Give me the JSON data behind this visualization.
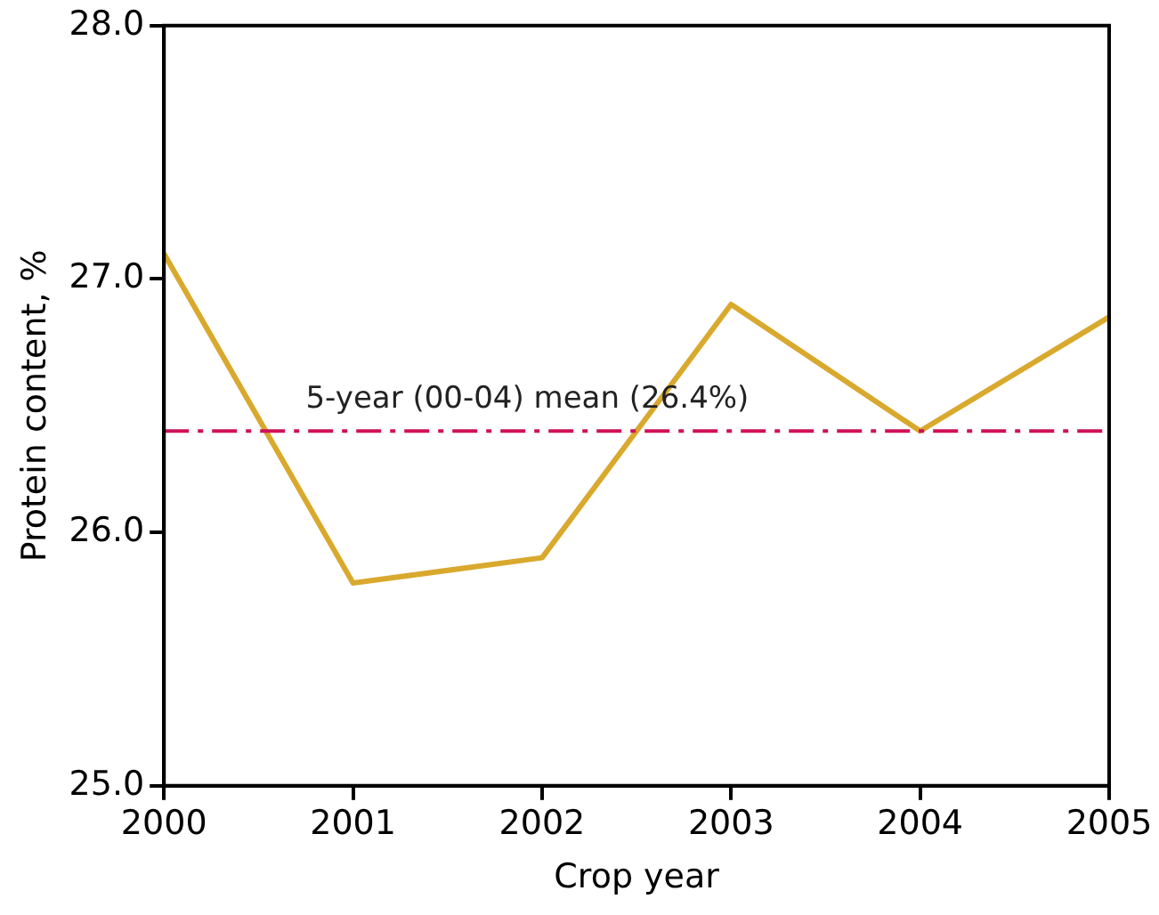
{
  "chart_data": {
    "type": "line",
    "xlabel": "Crop year",
    "ylabel": "Protein content, %",
    "x": [
      2000,
      2001,
      2002,
      2003,
      2004,
      2005
    ],
    "series": [
      {
        "color": "#d9a92e",
        "values": [
          27.1,
          25.8,
          25.9,
          26.9,
          26.4,
          26.85
        ]
      }
    ],
    "xlim": [
      2000,
      2005
    ],
    "xticks": [
      2000,
      2001,
      2002,
      2003,
      2004,
      2005
    ],
    "ylim": [
      25,
      28
    ],
    "yticks": [
      {
        "value": 25,
        "label": "25.0"
      },
      {
        "value": 26,
        "label": "26.0"
      },
      {
        "value": 27,
        "label": "27.0"
      },
      {
        "value": 28,
        "label": "28.0"
      }
    ],
    "ref_lines": [
      {
        "axis": "y",
        "value": 26.4,
        "label": "5-year (00-04) mean (26.4%)",
        "color": "#d0105a",
        "line_style": "dashdot"
      }
    ],
    "grid": false,
    "legend": false,
    "marker": "none",
    "line_style": "solid"
  }
}
